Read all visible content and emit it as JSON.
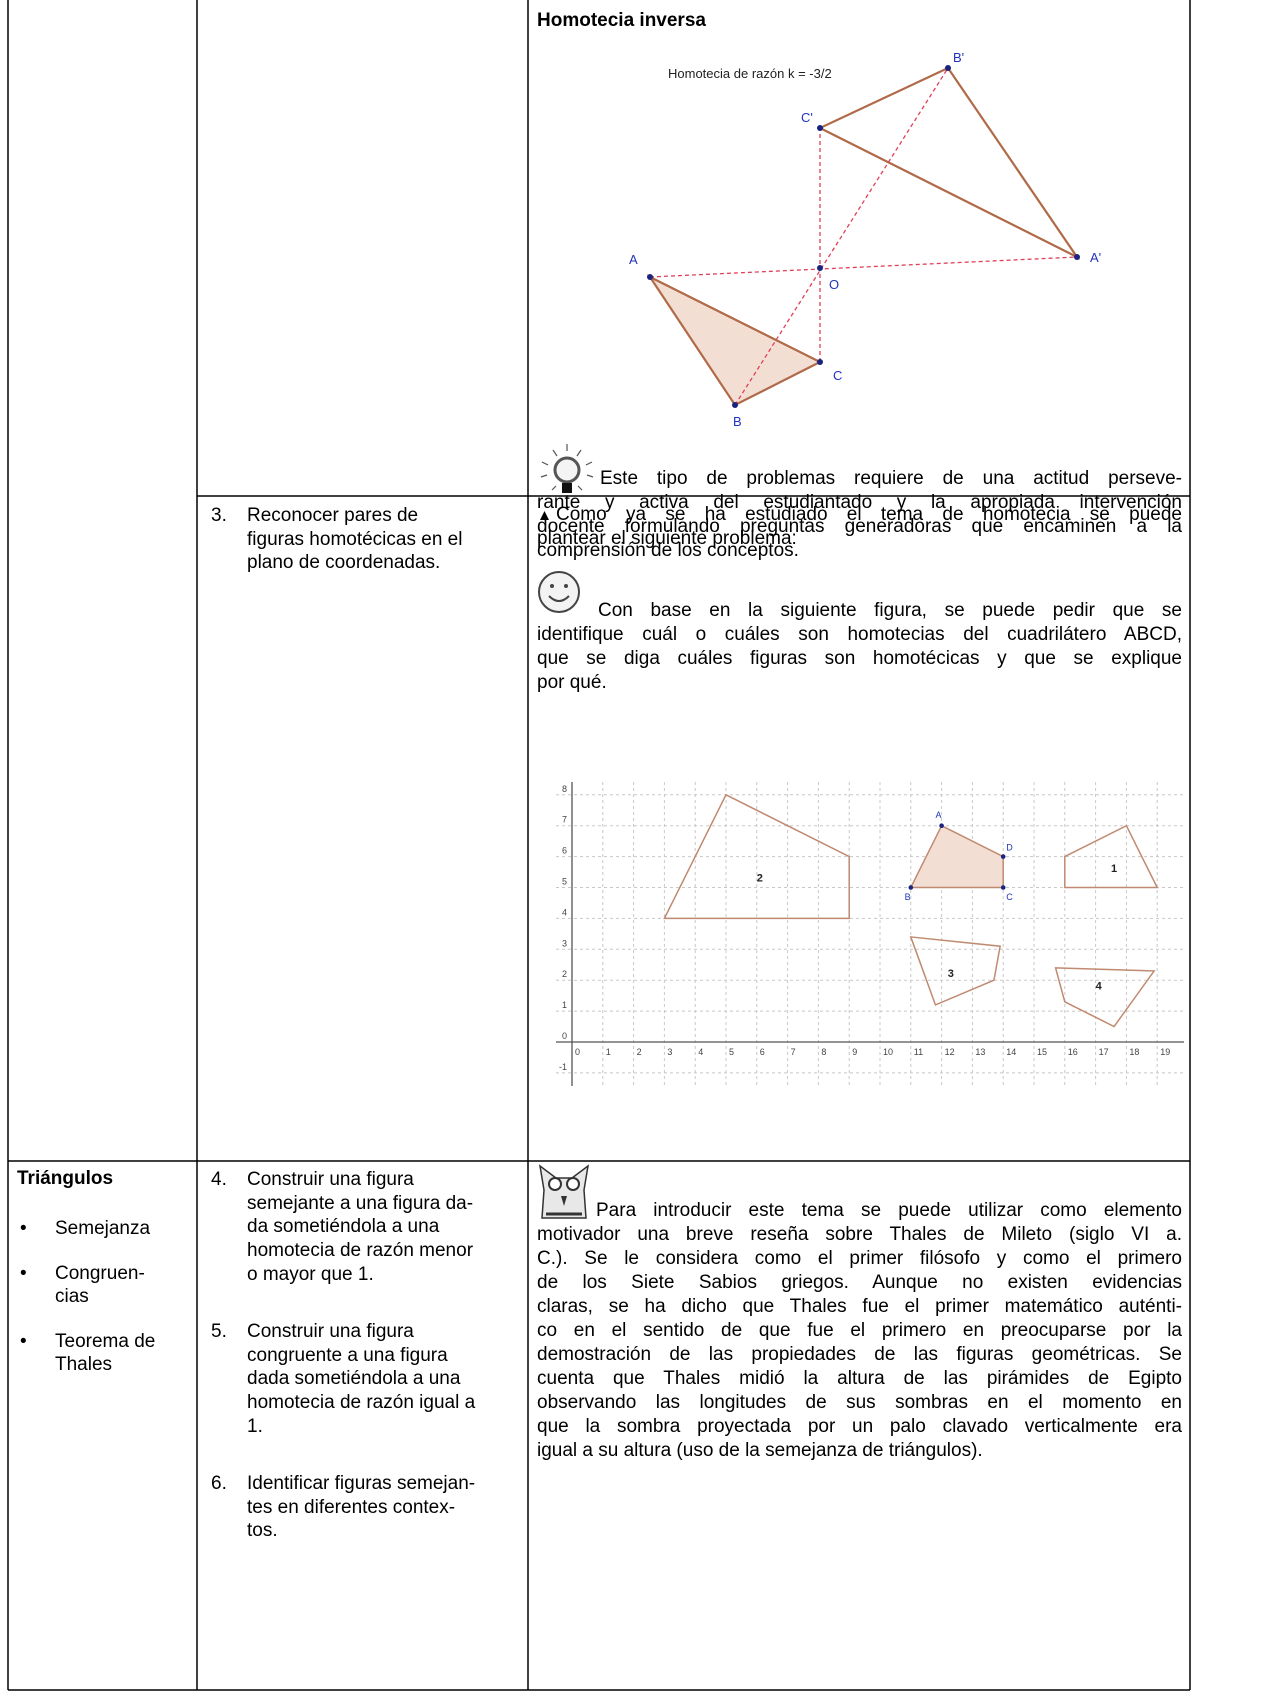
{
  "homotecia": {
    "title": "Homotecia inversa",
    "figure": {
      "caption": "Homotecia de razón k = -3/2",
      "labels": [
        "A",
        "B",
        "C",
        "O",
        "A'",
        "B'",
        "C'"
      ]
    },
    "note": [
      "Este tipo de problemas requiere de una actitud perseve-",
      "rante y activa del estudiantado y la apropiada intervención",
      "docente formulando preguntas generadoras que encaminen a la",
      "comprensión de los conceptos."
    ]
  },
  "row2": {
    "objective": {
      "number": "3.",
      "lines": [
        "Reconocer pares de",
        "figuras homotécicas en el",
        "plano de coordenadas."
      ]
    },
    "intro": [
      "Como ya se ha estudiado el tema de homotecia se puede",
      "plantear el siguiente problema:"
    ],
    "problem": [
      "Con base en la siguiente figura, se puede pedir que se",
      "identifique cuál o cuáles son homotecias del cuadrilátero ABCD,",
      "que se diga cuáles figuras son homotécicas y que se explique",
      "por qué."
    ],
    "grid": {
      "xticks": [
        0,
        1,
        2,
        3,
        4,
        5,
        6,
        7,
        8,
        9,
        10,
        11,
        12,
        13,
        14,
        15,
        16,
        17,
        18,
        19
      ],
      "yticks": [
        -1,
        0,
        1,
        2,
        3,
        4,
        5,
        6,
        7,
        8
      ],
      "figure_labels": [
        "1",
        "2",
        "3",
        "4"
      ],
      "point_labels": [
        "A",
        "B",
        "C",
        "D"
      ]
    }
  },
  "row3": {
    "topic": {
      "title": "Triángulos",
      "items": [
        [
          "Semejanza"
        ],
        [
          "Congruen-",
          "cias"
        ],
        [
          "Teorema de",
          "Thales"
        ]
      ]
    },
    "objectives": [
      {
        "number": "4.",
        "lines": [
          "Construir una figura",
          "semejante a una figura da-",
          "da sometiéndola a una",
          "homotecia de razón menor",
          "o mayor que 1."
        ]
      },
      {
        "number": "5.",
        "lines": [
          "Construir una figura",
          "congruente a una figura",
          "dada sometiéndola a una",
          "homotecia de razón igual a",
          "1."
        ]
      },
      {
        "number": "6.",
        "lines": [
          "Identificar figuras semejan-",
          "tes en diferentes contex-",
          "tos."
        ]
      }
    ],
    "note": [
      "Para introducir este tema se puede utilizar como elemento",
      "motivador una breve reseña sobre Thales de Mileto (siglo VI a.",
      "C.). Se le considera como el primer filósofo y como el primero",
      "de los Siete Sabios griegos. Aunque no existen evidencias",
      "claras, se ha dicho que Thales fue el primer matemático auténti-",
      "co en el sentido de que fue el primero en preocuparse por la",
      "demostración de las propiedades de las figuras geométricas. Se",
      "cuenta que Thales midió la altura de las pirámides de Egipto",
      "observando las longitudes de sus sombras en el momento en",
      "que la sombra proyectada por un palo clavado verticalmente era",
      "igual a su altura (uso de la semejanza de triángulos)."
    ]
  }
}
